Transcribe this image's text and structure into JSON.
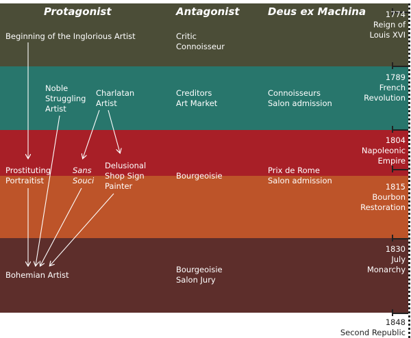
{
  "colors": {
    "olive": "#4b4d37",
    "teal": "#28766c",
    "red": "#a81f27",
    "orange": "#bd5429",
    "brown": "#5d2e2b"
  },
  "headers": {
    "protagonist": "Protagonist",
    "antagonist": "Antagonist",
    "deus": "Deus ex Machina"
  },
  "eras": [
    {
      "year": "1774",
      "name": "Reign of\nLouis XVI"
    },
    {
      "year": "1789",
      "name": "French\nRevolution"
    },
    {
      "year": "1804",
      "name": "Napoleonic\nEmpire"
    },
    {
      "year": "1815",
      "name": "Bourbon\nRestoration"
    },
    {
      "year": "1830",
      "name": "July\nMonarchy"
    },
    {
      "year": "1848",
      "name": "Second Republic"
    }
  ],
  "protagonists": {
    "beginning": "Beginning of the Inglorious Artist",
    "noble": "Noble\nStruggling\nArtist",
    "charlatan": "Charlatan\nArtist",
    "prostituting": "Prostituting\nPortraitist",
    "sans_souci": "Sans\nSouci",
    "delusional": "Delusional\nShop Sign\nPainter",
    "bohemian": "Bohemian Artist"
  },
  "antagonists": [
    "Critic\nConnoisseur",
    "Creditors\nArt Market",
    "Bourgeoisie",
    "Bourgeoisie\nSalon Jury"
  ],
  "deus": [
    "Connoisseurs\nSalon admission",
    "Prix de Rome\nSalon admission"
  ]
}
